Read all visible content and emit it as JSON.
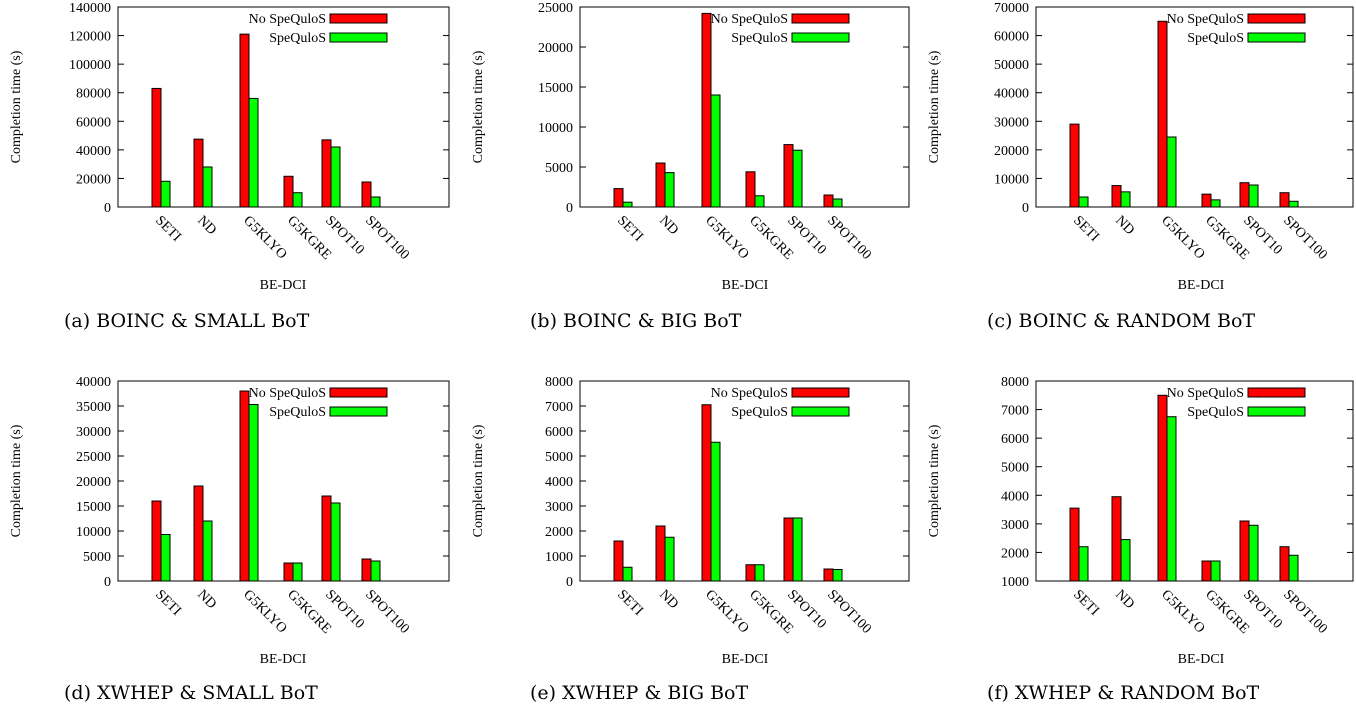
{
  "legend": {
    "no_spequlos": "No SpeQuloS",
    "spequlos": "SpeQuloS"
  },
  "colors": {
    "no_spequlos": "#ff0000",
    "spequlos": "#00ff00"
  },
  "chart_data": [
    {
      "type": "bar",
      "caption": "(a) BOINC & SMALL BoT",
      "categories": [
        "SETI",
        "ND",
        "G5KLYO",
        "G5KGRE",
        "SPOT10",
        "SPOT100"
      ],
      "series": [
        {
          "name": "No SpeQuloS",
          "values": [
            83000,
            47500,
            121000,
            21500,
            47000,
            17500
          ]
        },
        {
          "name": "SpeQuloS",
          "values": [
            18000,
            28000,
            76000,
            10000,
            42000,
            7000
          ]
        }
      ],
      "xlabel": "BE-DCI",
      "ylabel": "Completion time (s)",
      "ylim": [
        0,
        140000
      ],
      "yticks": [
        0,
        20000,
        40000,
        60000,
        80000,
        100000,
        120000,
        140000
      ],
      "grid": false,
      "legend_position": "top-right"
    },
    {
      "type": "bar",
      "caption": "(b) BOINC & BIG BoT",
      "categories": [
        "SETI",
        "ND",
        "G5KLYO",
        "G5KGRE",
        "SPOT10",
        "SPOT100"
      ],
      "series": [
        {
          "name": "No SpeQuloS",
          "values": [
            2300,
            5500,
            24200,
            4400,
            7800,
            1500
          ]
        },
        {
          "name": "SpeQuloS",
          "values": [
            600,
            4300,
            14000,
            1400,
            7100,
            1000
          ]
        }
      ],
      "xlabel": "BE-DCI",
      "ylabel": "Completion time (s)",
      "ylim": [
        0,
        25000
      ],
      "yticks": [
        0,
        5000,
        10000,
        15000,
        20000,
        25000
      ],
      "grid": false,
      "legend_position": "top-right"
    },
    {
      "type": "bar",
      "caption": "(c) BOINC & RANDOM BoT",
      "categories": [
        "SETI",
        "ND",
        "G5KLYO",
        "G5KGRE",
        "SPOT10",
        "SPOT100"
      ],
      "series": [
        {
          "name": "No SpeQuloS",
          "values": [
            29000,
            7500,
            65000,
            4500,
            8500,
            5000
          ]
        },
        {
          "name": "SpeQuloS",
          "values": [
            3500,
            5300,
            24500,
            2500,
            7700,
            2000
          ]
        }
      ],
      "xlabel": "BE-DCI",
      "ylabel": "Completion time (s)",
      "ylim": [
        0,
        70000
      ],
      "yticks": [
        0,
        10000,
        20000,
        30000,
        40000,
        50000,
        60000,
        70000
      ],
      "grid": false,
      "legend_position": "top-right"
    },
    {
      "type": "bar",
      "caption": "(d) XWHEP & SMALL BoT",
      "categories": [
        "SETI",
        "ND",
        "G5KLYO",
        "G5KGRE",
        "SPOT10",
        "SPOT100"
      ],
      "series": [
        {
          "name": "No SpeQuloS",
          "values": [
            16000,
            19000,
            38000,
            3600,
            17000,
            4400
          ]
        },
        {
          "name": "SpeQuloS",
          "values": [
            9300,
            12000,
            35300,
            3600,
            15600,
            4000
          ]
        }
      ],
      "xlabel": "BE-DCI",
      "ylabel": "Completion time (s)",
      "ylim": [
        0,
        40000
      ],
      "yticks": [
        0,
        5000,
        10000,
        15000,
        20000,
        25000,
        30000,
        35000,
        40000
      ],
      "grid": false,
      "legend_position": "top-right"
    },
    {
      "type": "bar",
      "caption": "(e) XWHEP & BIG BoT",
      "categories": [
        "SETI",
        "ND",
        "G5KLYO",
        "G5KGRE",
        "SPOT10",
        "SPOT100"
      ],
      "series": [
        {
          "name": "No SpeQuloS",
          "values": [
            1600,
            2200,
            7050,
            650,
            2520,
            480
          ]
        },
        {
          "name": "SpeQuloS",
          "values": [
            550,
            1750,
            5550,
            650,
            2520,
            460
          ]
        }
      ],
      "xlabel": "BE-DCI",
      "ylabel": "Completion time (s)",
      "ylim": [
        0,
        8000
      ],
      "yticks": [
        0,
        1000,
        2000,
        3000,
        4000,
        5000,
        6000,
        7000,
        8000
      ],
      "grid": false,
      "legend_position": "top-right"
    },
    {
      "type": "bar",
      "caption": "(f) XWHEP & RANDOM BoT",
      "categories": [
        "SETI",
        "ND",
        "G5KLYO",
        "G5KGRE",
        "SPOT10",
        "SPOT100"
      ],
      "series": [
        {
          "name": "No SpeQuloS",
          "values": [
            3550,
            3950,
            7500,
            1700,
            3100,
            2200
          ]
        },
        {
          "name": "SpeQuloS",
          "values": [
            2200,
            2450,
            6750,
            1700,
            2950,
            1900
          ]
        }
      ],
      "xlabel": "BE-DCI",
      "ylabel": "Completion time (s)",
      "ylim": [
        1000,
        8000
      ],
      "yticks": [
        1000,
        2000,
        3000,
        4000,
        5000,
        6000,
        7000,
        8000
      ],
      "grid": false,
      "legend_position": "top-right"
    }
  ]
}
